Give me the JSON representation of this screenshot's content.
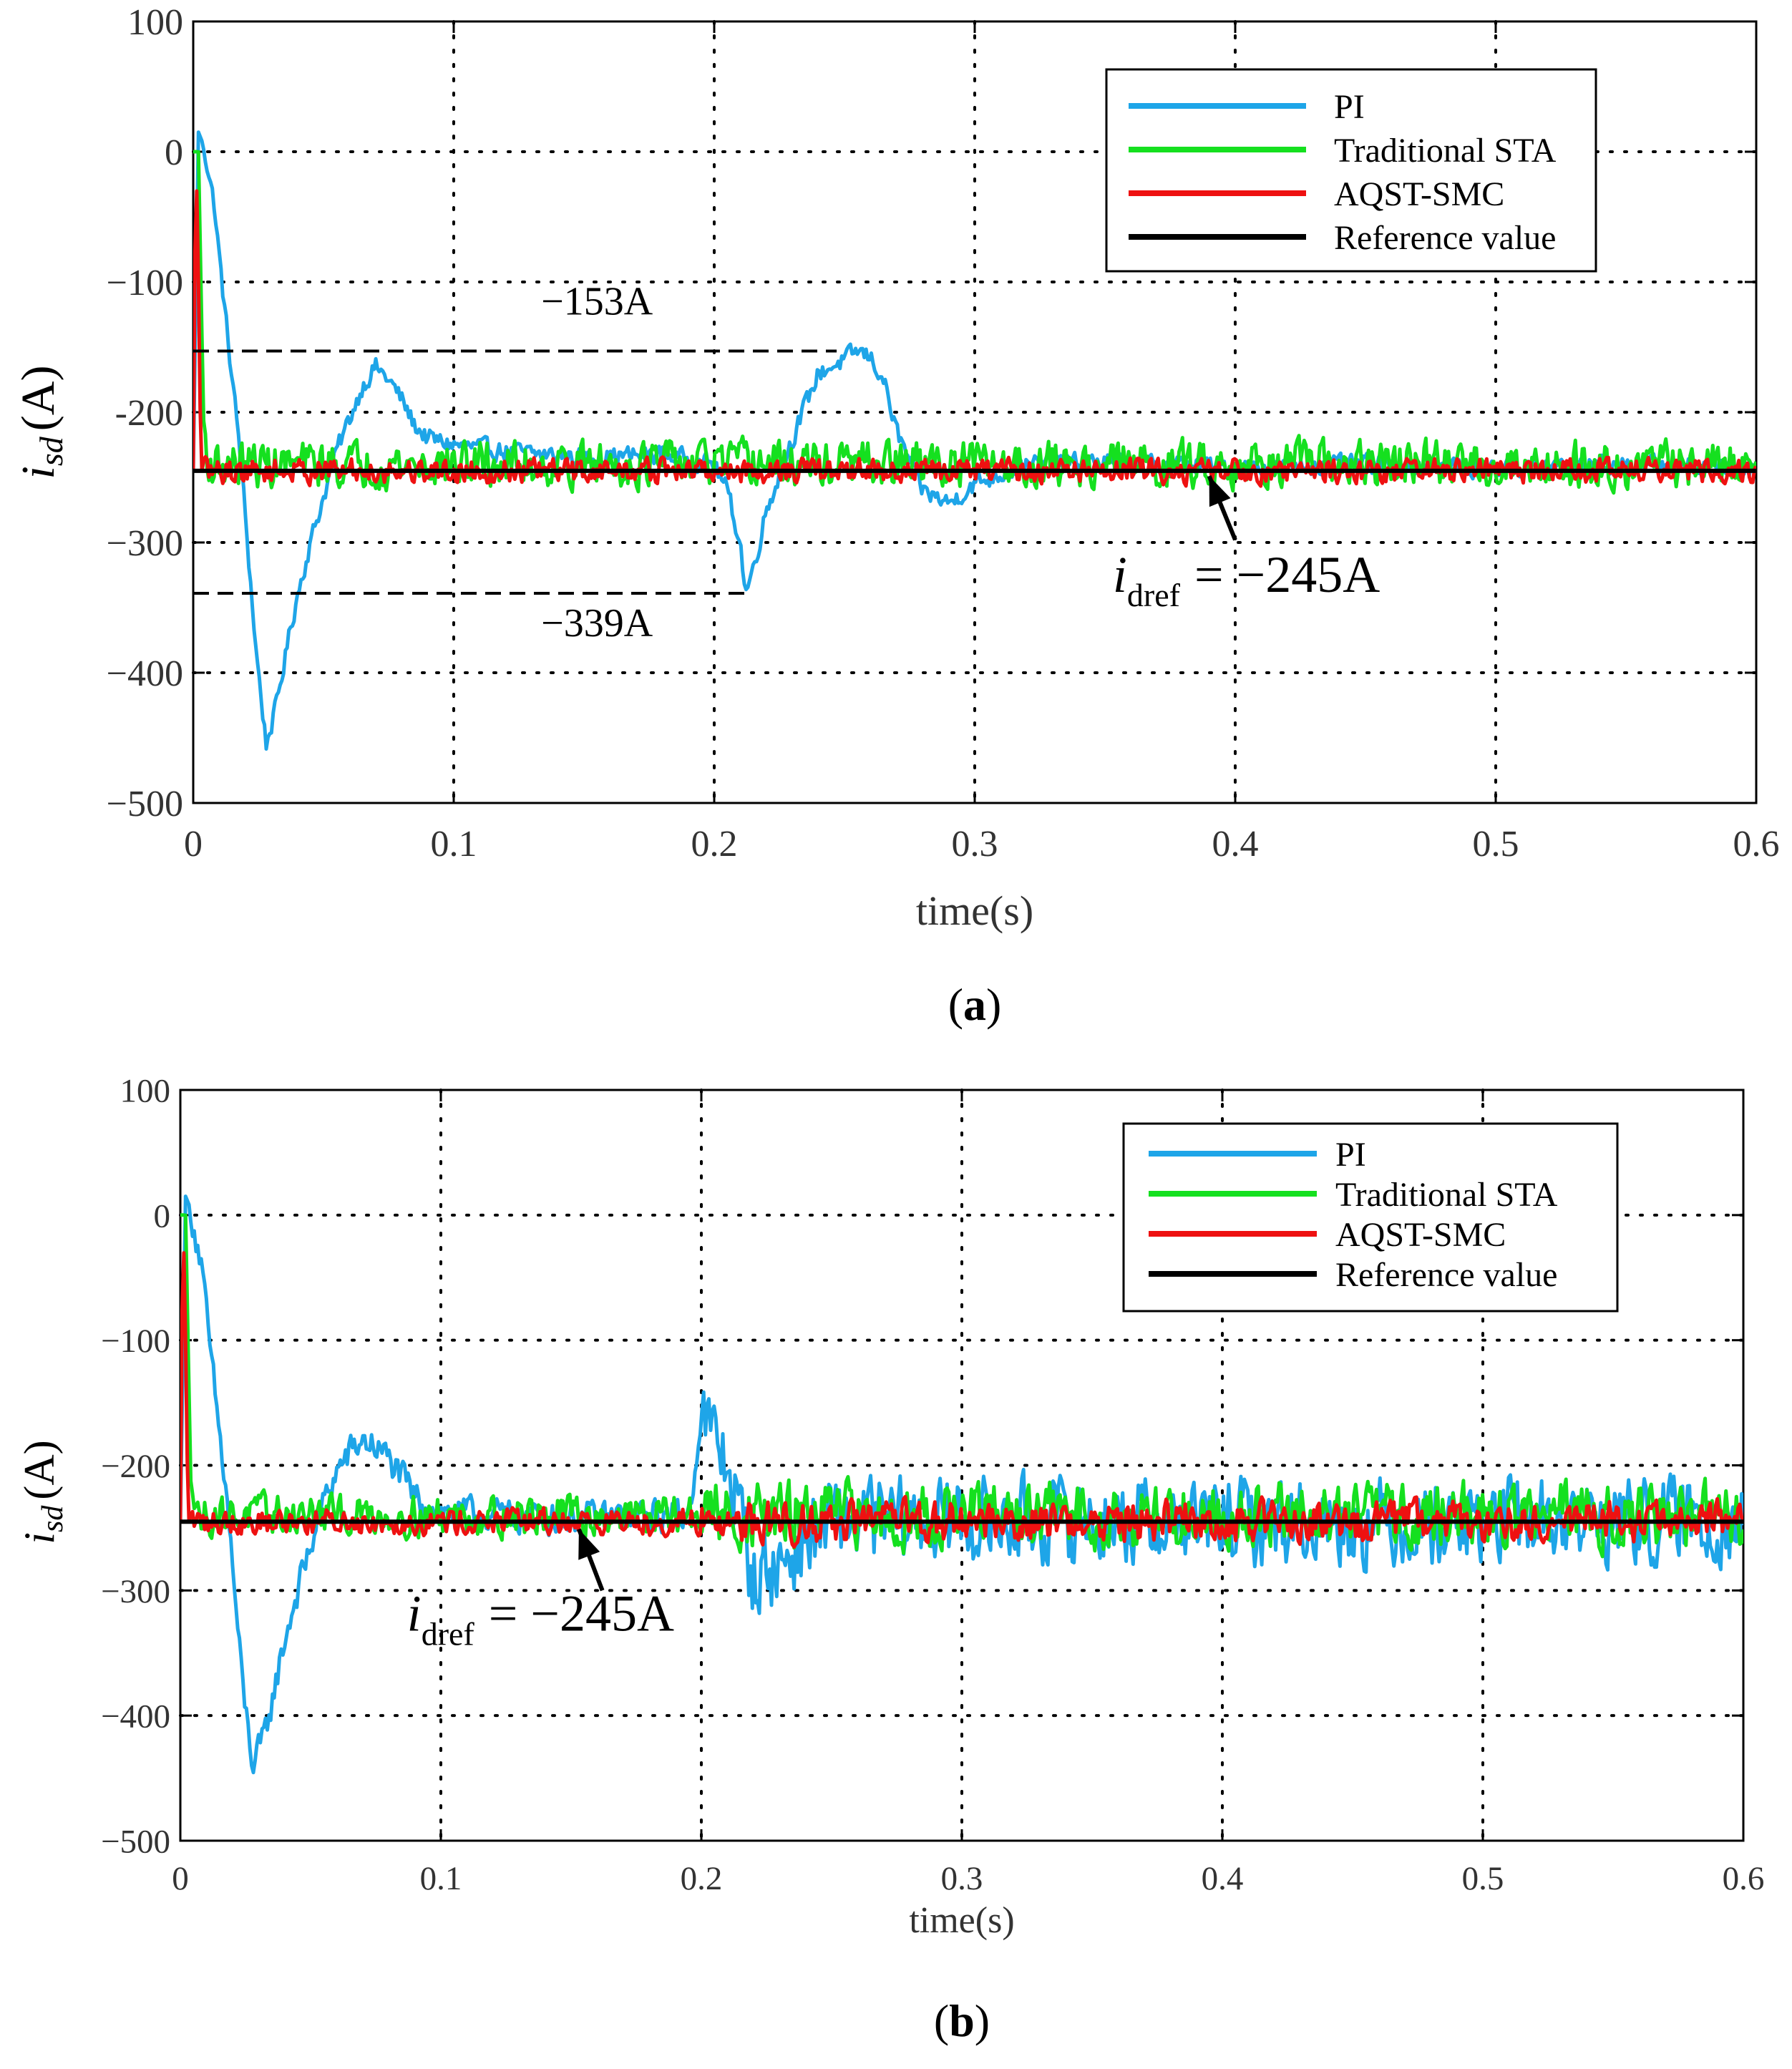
{
  "colors": {
    "pi": "#1ea5e8",
    "sta": "#15e01f",
    "aqst": "#ee1111",
    "reference": "#000000",
    "grid": "#000000"
  },
  "chart_data": [
    {
      "type": "line",
      "panel_label": "a",
      "xlabel": "time(s)",
      "ylabel_var": "i",
      "ylabel_sub": "sd",
      "ylabel_unit": "(A)",
      "xlim": [
        0,
        0.6
      ],
      "ylim": [
        -500,
        100
      ],
      "xticks": [
        0,
        0.1,
        0.2,
        0.3,
        0.4,
        0.5,
        0.6
      ],
      "xtick_labels": [
        "0",
        "0.1",
        "0.2",
        "0.3",
        "0.4",
        "0.5",
        "0.6"
      ],
      "yticks": [
        100,
        0,
        -100,
        -200,
        -300,
        -400,
        -500
      ],
      "ytick_labels": [
        "100",
        "0",
        "−100",
        "-200",
        "−300",
        "−400",
        "−500"
      ],
      "grid": "dotted",
      "legend": {
        "placement": "top-right",
        "entries": [
          "PI",
          "Traditional STA",
          "AQST-SMC",
          "Reference value"
        ]
      },
      "reference_value": -245,
      "series": [
        {
          "name": "PI",
          "x": [
            0,
            0.002,
            0.004,
            0.008,
            0.012,
            0.018,
            0.024,
            0.028,
            0.032,
            0.036,
            0.04,
            0.045,
            0.05,
            0.055,
            0.06,
            0.065,
            0.07,
            0.075,
            0.08,
            0.085,
            0.09,
            0.1,
            0.12,
            0.15,
            0.18,
            0.2,
            0.205,
            0.21,
            0.212,
            0.215,
            0.22,
            0.23,
            0.24,
            0.25,
            0.255,
            0.26,
            0.265,
            0.27,
            0.28,
            0.29,
            0.3,
            0.32,
            0.35,
            0.4,
            0.45,
            0.5,
            0.55,
            0.6
          ],
          "values": [
            -245,
            15,
            5,
            -40,
            -120,
            -230,
            -380,
            -455,
            -425,
            -380,
            -340,
            -300,
            -265,
            -230,
            -205,
            -180,
            -165,
            -175,
            -190,
            -210,
            -220,
            -225,
            -230,
            -235,
            -232,
            -240,
            -260,
            -300,
            -339,
            -320,
            -275,
            -220,
            -170,
            -160,
            -153,
            -158,
            -175,
            -215,
            -260,
            -270,
            -255,
            -240,
            -238,
            -242,
            -240,
            -243,
            -240,
            -242
          ],
          "noise": 10
        },
        {
          "name": "Traditional STA",
          "x": [
            0,
            0.002,
            0.004,
            0.006,
            0.6
          ],
          "values": [
            0,
            0,
            -210,
            -240,
            -240
          ],
          "noise": 24
        },
        {
          "name": "AQST-SMC",
          "x": [
            0,
            0.001,
            0.002,
            0.003,
            0.6
          ],
          "values": [
            -245,
            5,
            -100,
            -245,
            -245
          ],
          "noise": 13
        },
        {
          "name": "Reference value",
          "x": [
            0,
            0.6
          ],
          "values": [
            -245,
            -245
          ],
          "noise": 0
        }
      ],
      "annotations": [
        {
          "text": "−153A",
          "kind": "dashed-level",
          "level": -153,
          "x_from": 0,
          "x_to": 0.247,
          "label_x": 0.155,
          "label_y": -125
        },
        {
          "text": "−339A",
          "kind": "dashed-level",
          "level": -339,
          "x_from": 0,
          "x_to": 0.213,
          "label_x": 0.155,
          "label_y": -372
        },
        {
          "text_var": "i",
          "text_sub": "dref",
          "text_eq": "= −245A",
          "kind": "arrow",
          "arrow_from_x": 0.4,
          "arrow_from_y": -298,
          "arrow_to_x": 0.39,
          "arrow_to_y": -249,
          "label_x": 0.353,
          "label_y": -338
        }
      ]
    },
    {
      "type": "line",
      "panel_label": "b",
      "xlabel": "time(s)",
      "ylabel_var": "i",
      "ylabel_sub": "sd",
      "ylabel_unit": "(A)",
      "xlim": [
        0,
        0.6
      ],
      "ylim": [
        -500,
        100
      ],
      "xticks": [
        0,
        0.1,
        0.2,
        0.3,
        0.4,
        0.5,
        0.6
      ],
      "xtick_labels": [
        "0",
        "0.1",
        "0.2",
        "0.3",
        "0.4",
        "0.5",
        "0.6"
      ],
      "yticks": [
        100,
        0,
        -100,
        -200,
        -300,
        -400,
        -500
      ],
      "ytick_labels": [
        "100",
        "0",
        "−100",
        "−200",
        "−300",
        "−400",
        "−500"
      ],
      "grid": "dotted",
      "legend": {
        "placement": "top-right",
        "entries": [
          "PI",
          "Traditional STA",
          "AQST-SMC",
          "Reference value"
        ]
      },
      "reference_value": -245,
      "series": [
        {
          "name": "PI",
          "x": [
            0,
            0.002,
            0.004,
            0.008,
            0.012,
            0.018,
            0.024,
            0.028,
            0.032,
            0.036,
            0.04,
            0.045,
            0.05,
            0.055,
            0.06,
            0.065,
            0.07,
            0.075,
            0.08,
            0.085,
            0.09,
            0.1,
            0.15,
            0.195,
            0.2,
            0.205,
            0.21,
            0.215,
            0.22,
            0.23,
            0.24,
            0.25,
            0.3,
            0.4,
            0.5,
            0.6
          ],
          "values": [
            -245,
            15,
            5,
            -40,
            -120,
            -230,
            -380,
            -440,
            -420,
            -380,
            -340,
            -300,
            -265,
            -230,
            -205,
            -190,
            -180,
            -185,
            -195,
            -210,
            -225,
            -238,
            -242,
            -240,
            -160,
            -180,
            -200,
            -240,
            -290,
            -280,
            -260,
            -245,
            -245,
            -245,
            -245,
            -245
          ],
          "noise": 18
        },
        {
          "name": "Traditional STA",
          "x": [
            0,
            0.002,
            0.004,
            0.006,
            0.6
          ],
          "values": [
            0,
            0,
            -210,
            -240,
            -240
          ],
          "noise": 22
        },
        {
          "name": "AQST-SMC",
          "x": [
            0,
            0.001,
            0.002,
            0.003,
            0.6
          ],
          "values": [
            -245,
            5,
            -100,
            -245,
            -245
          ],
          "noise": 14
        },
        {
          "name": "Reference value",
          "x": [
            0,
            0.6
          ],
          "values": [
            -245,
            -245
          ],
          "noise": 0
        }
      ],
      "annotations": [
        {
          "text_var": "i",
          "text_sub": "dref",
          "text_eq": "= −245A",
          "kind": "arrow",
          "arrow_from_x": 0.162,
          "arrow_from_y": -300,
          "arrow_to_x": 0.153,
          "arrow_to_y": -251,
          "label_x": 0.087,
          "label_y": -332
        }
      ]
    }
  ]
}
